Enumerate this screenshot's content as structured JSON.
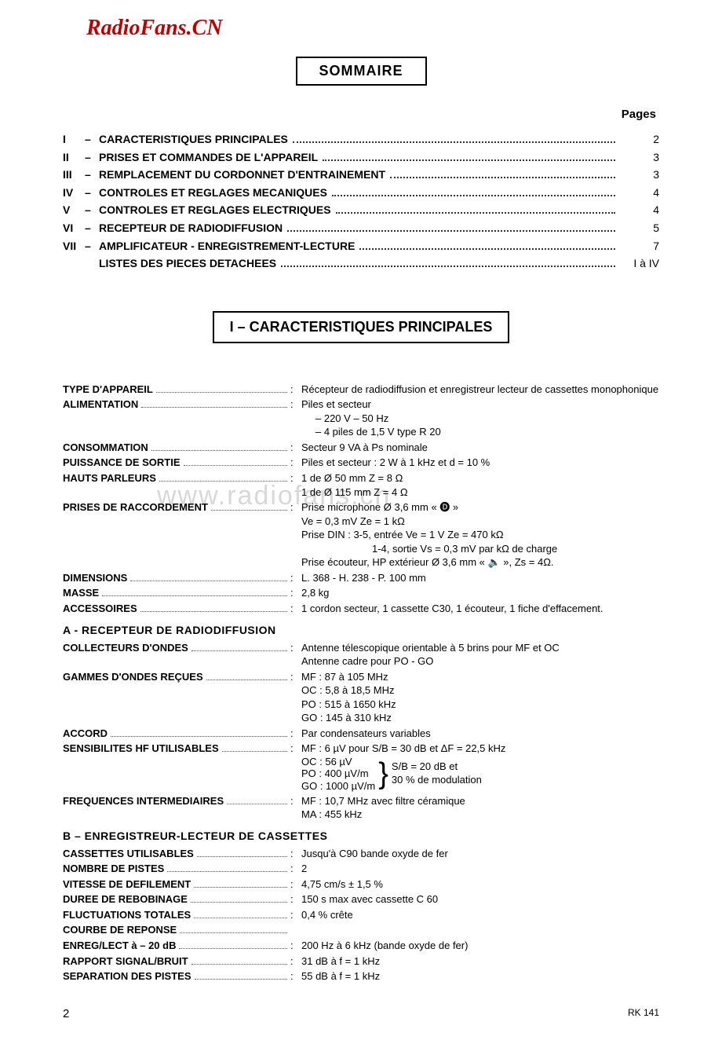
{
  "watermark_top": "RadioFans.CN",
  "watermark_mid": "www.radiofans.cn",
  "sommaire": {
    "title": "SOMMAIRE",
    "pages_header": "Pages",
    "items": [
      {
        "num": "I",
        "title": "CARACTERISTIQUES PRINCIPALES",
        "page": "2"
      },
      {
        "num": "II",
        "title": "PRISES ET COMMANDES DE L'APPAREIL",
        "page": "3"
      },
      {
        "num": "III",
        "title": "REMPLACEMENT DU CORDONNET D'ENTRAINEMENT",
        "page": "3"
      },
      {
        "num": "IV",
        "title": "CONTROLES ET REGLAGES MECANIQUES",
        "page": "4"
      },
      {
        "num": "V",
        "title": "CONTROLES ET REGLAGES ELECTRIQUES",
        "page": "4"
      },
      {
        "num": "VI",
        "title": "RECEPTEUR DE RADIODIFFUSION",
        "page": "5"
      },
      {
        "num": "VII",
        "title": "AMPLIFICATEUR - ENREGISTREMENT-LECTURE",
        "page": "7"
      },
      {
        "num": "",
        "title": "LISTES DES PIECES DETACHEES",
        "page": "I à IV"
      }
    ]
  },
  "section1": {
    "title": "I  –  CARACTERISTIQUES PRINCIPALES",
    "specs_main": [
      {
        "label": "TYPE D'APPAREIL",
        "lines": [
          "Récepteur de radiodiffusion et enregistreur lecteur de cassettes monophonique"
        ]
      },
      {
        "label": "ALIMENTATION",
        "lines": [
          "Piles et secteur",
          "–  220 V  –  50 Hz",
          "–  4 piles de 1,5 V type R 20"
        ],
        "indent_from": 1
      },
      {
        "label": "CONSOMMATION",
        "lines": [
          "Secteur 9 VA à Ps nominale"
        ]
      },
      {
        "label": "PUISSANCE DE SORTIE",
        "lines": [
          "Piles et secteur : 2 W à 1 kHz et d  =  10 %"
        ]
      },
      {
        "label": "HAUTS PARLEURS",
        "lines": [
          "1 de Ø 50 mm Z  =  8 Ω",
          "1 de Ø 115 mm Z  =  4 Ω"
        ]
      },
      {
        "label": "PRISES DE RACCORDEMENT",
        "lines": [
          "Prise microphone Ø 3,6 mm « 🅓 »",
          "Ve  =  0,3 mV Ze  =  1 kΩ",
          "Prise DIN :  3-5, entrée Ve  =  1 V Ze  =  470 kΩ",
          "1-4, sortie Vs  =  0,3 mV par kΩ de charge",
          "Prise écouteur, HP extérieur Ø 3,6 mm «  🔈  », Zs  =  4Ω."
        ],
        "indent_map": {
          "3": "indent2"
        }
      },
      {
        "label": "DIMENSIONS",
        "lines": [
          "L. 368  -  H. 238  -  P. 100 mm"
        ]
      },
      {
        "label": "MASSE",
        "lines": [
          "2,8 kg"
        ]
      },
      {
        "label": "ACCESSOIRES",
        "lines": [
          "1 cordon secteur, 1 cassette C30, 1 écouteur, 1 fiche d'effacement."
        ]
      }
    ],
    "sub_a": {
      "title": "A - RECEPTEUR DE RADIODIFFUSION",
      "specs": [
        {
          "label": "COLLECTEURS D'ONDES",
          "lines": [
            "Antenne télescopique orientable à 5 brins pour MF et OC",
            "Antenne cadre pour PO - GO"
          ]
        },
        {
          "label": "GAMMES D'ONDES REÇUES",
          "lines": [
            "MF : 87 à 105 MHz",
            "OC : 5,8 à 18,5 MHz",
            "PO : 515 à 1650 kHz",
            "GO : 145 à 310 kHz"
          ]
        },
        {
          "label": "ACCORD",
          "lines": [
            "Par condensateurs variables"
          ]
        },
        {
          "label": "SENSIBILITES HF UTILISABLES",
          "lines": [
            "MF : 6 µV pour S/B  =  30 dB et ΔF  =  22,5 kHz"
          ],
          "brace": {
            "left": [
              "OC : 56 µV",
              "PO : 400 µV/m",
              "GO : 1000 µV/m"
            ],
            "right": [
              "S/B  =  20 dB et",
              "30 % de modulation"
            ]
          }
        },
        {
          "label": "FREQUENCES INTERMEDIAIRES",
          "lines": [
            "MF : 10,7 MHz avec filtre céramique",
            "MA : 455 kHz"
          ]
        }
      ]
    },
    "sub_b": {
      "title": "B  –  ENREGISTREUR-LECTEUR DE CASSETTES",
      "specs": [
        {
          "label": "CASSETTES UTILISABLES",
          "lines": [
            "Jusqu'à C90 bande oxyde de fer"
          ]
        },
        {
          "label": "NOMBRE DE PISTES",
          "lines": [
            "2"
          ]
        },
        {
          "label": "VITESSE DE DEFILEMENT",
          "lines": [
            "4,75 cm/s  ±  1,5 %"
          ]
        },
        {
          "label": "DUREE DE REBOBINAGE",
          "lines": [
            "150 s max avec cassette C 60"
          ]
        },
        {
          "label": "FLUCTUATIONS TOTALES",
          "lines": [
            "0,4 % crête"
          ]
        },
        {
          "label": "COURBE DE REPONSE",
          "no_value": true
        },
        {
          "label": "ENREG/LECT à  –  20 dB",
          "lines": [
            "200 Hz à 6 kHz (bande oxyde de fer)"
          ]
        },
        {
          "label": "RAPPORT SIGNAL/BRUIT",
          "lines": [
            "31 dB à f  =  1 kHz"
          ]
        },
        {
          "label": "SEPARATION DES PISTES",
          "lines": [
            "55 dB à f  =  1 kHz"
          ]
        }
      ]
    }
  },
  "footer": {
    "page": "2",
    "ref": "RK 141"
  }
}
